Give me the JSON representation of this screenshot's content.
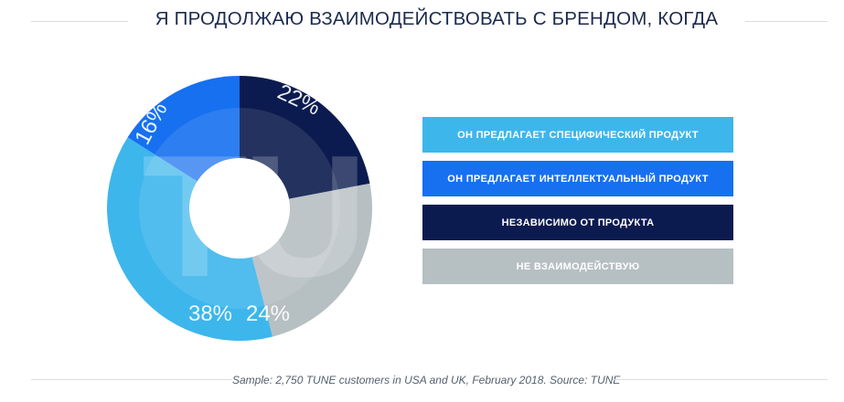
{
  "title": "Я ПРОДОЛЖАЮ ВЗАИМОДЕЙСТВОВАТЬ С БРЕНДОМ, КОГДА",
  "footer": "Sample: 2,750 TUNE customers in USA and UK, February 2018. Source: TUNE",
  "watermark": "TUNE",
  "chart_data": {
    "type": "pie",
    "title": "Я ПРОДОЛЖАЮ ВЗАИМОДЕЙСТВОВАТЬ С БРЕНДОМ, КОГДА",
    "legend_placement": "right",
    "categories": [
      "ОН ПРЕДЛАГАЕТ СПЕЦИФИЧЕСКИЙ ПРОДУКТ",
      "ОН ПРЕДЛАГАЕТ ИНТЕЛЛЕКТУАЛЬНЫЙ ПРОДУКТ",
      "НЕЗАВИСИМО ОТ ПРОДУКТА",
      "НЕ ВЗАИМОДЕЙСТВУЮ"
    ],
    "values": [
      38,
      16,
      22,
      24
    ],
    "value_labels": [
      "38%",
      "16%",
      "22%",
      "24%"
    ],
    "colors": [
      "#3db6ec",
      "#1670f0",
      "#0c1b4f",
      "#b6bfc2"
    ]
  }
}
